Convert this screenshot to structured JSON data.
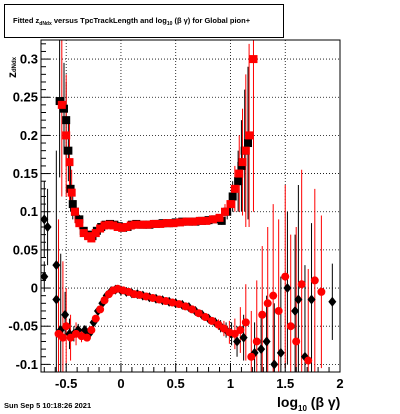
{
  "title": {
    "fitted": "Fitted",
    "z": "z",
    "z_sub": "dNdx",
    "mid": "versus TpcTrackLength and log",
    "log_sub": "10",
    "tail": "(β γ) for Global pion+"
  },
  "timestamp": "Sun Sep  5 10:18:26 2021",
  "axis_titles": {
    "x_main": "log",
    "x_sub": "10",
    "x_tail": "(β γ)",
    "y_main": "z",
    "y_sub": "dNdx"
  },
  "chart_data": {
    "type": "scatter",
    "title": "Fitted z_dNdx versus TpcTrackLength and log10(β γ) for Global pion+",
    "xlabel": "log10(β γ)",
    "ylabel": "z_dNdx",
    "xlim": [
      -0.73,
      2.0
    ],
    "ylim": [
      -0.11,
      0.325
    ],
    "grid": true,
    "x_ticks": [
      "-0.5",
      "0",
      "0.5",
      "1",
      "1.5",
      "2"
    ],
    "x_tick_values": [
      -0.5,
      0,
      0.5,
      1,
      1.5,
      2
    ],
    "y_ticks": [
      "-0.1",
      "-0.05",
      "0",
      "0.05",
      "0.1",
      "0.15",
      "0.2",
      "0.25",
      "0.3"
    ],
    "y_tick_values": [
      -0.1,
      -0.05,
      0,
      0.05,
      0.1,
      0.15,
      0.2,
      0.25,
      0.3
    ],
    "series": [
      {
        "color": "#000000",
        "marker": "square",
        "points": [
          [
            -0.56,
            0.245,
            0.1
          ],
          [
            -0.52,
            0.235,
            0.06
          ],
          [
            -0.5,
            0.22,
            0.05
          ],
          [
            -0.48,
            0.18,
            0.04
          ],
          [
            -0.46,
            0.13,
            0.03
          ],
          [
            -0.44,
            0.11,
            0.02
          ],
          [
            -0.42,
            0.1,
            0.01
          ],
          [
            -0.38,
            0.09,
            0.006
          ],
          [
            -0.34,
            0.075,
            0.004
          ],
          [
            -0.3,
            0.07,
            0.003
          ],
          [
            -0.26,
            0.068,
            0.003
          ],
          [
            -0.22,
            0.075,
            0.002
          ],
          [
            -0.18,
            0.08,
            0.002
          ],
          [
            -0.14,
            0.083,
            0.002
          ],
          [
            -0.1,
            0.084,
            0.001
          ],
          [
            -0.06,
            0.083,
            0.001
          ],
          [
            -0.02,
            0.081,
            0.001
          ],
          [
            0.02,
            0.079,
            0.001
          ],
          [
            0.06,
            0.08,
            0.001
          ],
          [
            0.1,
            0.083,
            0.001
          ],
          [
            0.14,
            0.084,
            0.001
          ],
          [
            0.2,
            0.083,
            0.001
          ],
          [
            0.26,
            0.083,
            0.001
          ],
          [
            0.32,
            0.084,
            0.001
          ],
          [
            0.38,
            0.085,
            0.001
          ],
          [
            0.44,
            0.085,
            0.001
          ],
          [
            0.5,
            0.086,
            0.001
          ],
          [
            0.56,
            0.087,
            0.001
          ],
          [
            0.62,
            0.087,
            0.001
          ],
          [
            0.68,
            0.087,
            0.001
          ],
          [
            0.74,
            0.088,
            0.001
          ],
          [
            0.8,
            0.089,
            0.002
          ],
          [
            0.86,
            0.09,
            0.003
          ],
          [
            0.92,
            0.088,
            0.005
          ],
          [
            0.97,
            0.1,
            0.01
          ],
          [
            1.02,
            0.12,
            0.02
          ],
          [
            1.07,
            0.14,
            0.04
          ],
          [
            1.1,
            0.16,
            0.06
          ],
          [
            1.13,
            0.18,
            0.08
          ],
          [
            1.16,
            0.19,
            0.1
          ]
        ]
      },
      {
        "color": "#ff0000",
        "marker": "square",
        "points": [
          [
            -0.54,
            0.24,
            0.12
          ],
          [
            -0.5,
            0.2,
            0.08
          ],
          [
            -0.47,
            0.165,
            0.05
          ],
          [
            -0.45,
            0.125,
            0.03
          ],
          [
            -0.42,
            0.1,
            0.015
          ],
          [
            -0.38,
            0.085,
            0.008
          ],
          [
            -0.34,
            0.072,
            0.005
          ],
          [
            -0.3,
            0.068,
            0.004
          ],
          [
            -0.27,
            0.065,
            0.003
          ],
          [
            -0.23,
            0.072,
            0.003
          ],
          [
            -0.19,
            0.078,
            0.002
          ],
          [
            -0.15,
            0.082,
            0.002
          ],
          [
            -0.11,
            0.083,
            0.002
          ],
          [
            -0.07,
            0.082,
            0.001
          ],
          [
            -0.03,
            0.08,
            0.001
          ],
          [
            0.01,
            0.079,
            0.001
          ],
          [
            0.05,
            0.08,
            0.001
          ],
          [
            0.09,
            0.082,
            0.001
          ],
          [
            0.13,
            0.083,
            0.001
          ],
          [
            0.18,
            0.083,
            0.001
          ],
          [
            0.24,
            0.083,
            0.001
          ],
          [
            0.3,
            0.084,
            0.001
          ],
          [
            0.36,
            0.084,
            0.001
          ],
          [
            0.42,
            0.085,
            0.001
          ],
          [
            0.48,
            0.085,
            0.001
          ],
          [
            0.54,
            0.086,
            0.001
          ],
          [
            0.6,
            0.087,
            0.001
          ],
          [
            0.66,
            0.087,
            0.001
          ],
          [
            0.72,
            0.088,
            0.001
          ],
          [
            0.78,
            0.088,
            0.002
          ],
          [
            0.84,
            0.09,
            0.003
          ],
          [
            0.9,
            0.092,
            0.005
          ],
          [
            0.95,
            0.1,
            0.01
          ],
          [
            1.0,
            0.11,
            0.015
          ],
          [
            1.04,
            0.13,
            0.03
          ],
          [
            1.08,
            0.15,
            0.05
          ],
          [
            1.11,
            0.165,
            0.07
          ],
          [
            1.14,
            0.18,
            0.1
          ],
          [
            1.17,
            0.2,
            0.12
          ],
          [
            1.21,
            0.3,
            0.2
          ]
        ]
      },
      {
        "color": "#000000",
        "marker": "diamond",
        "points": [
          [
            -0.7,
            0.09,
            0.05
          ],
          [
            -0.67,
            0.08,
            0.05
          ],
          [
            -0.7,
            0.015,
            0.02
          ],
          [
            -0.59,
            0.03,
            0.15
          ],
          [
            -0.59,
            -0.015,
            0.04
          ],
          [
            -0.55,
            -0.055,
            0.1
          ],
          [
            -0.51,
            -0.035,
            0.03
          ],
          [
            -0.47,
            -0.06,
            0.02
          ],
          [
            -0.43,
            -0.06,
            0.01
          ],
          [
            -0.39,
            -0.055,
            0.008
          ],
          [
            -0.33,
            -0.055,
            0.006
          ],
          [
            -0.29,
            -0.06,
            0.005
          ],
          [
            -0.25,
            -0.045,
            0.004
          ],
          [
            -0.21,
            -0.03,
            0.003
          ],
          [
            -0.17,
            -0.02,
            0.003
          ],
          [
            -0.13,
            -0.01,
            0.002
          ],
          [
            -0.09,
            -0.004,
            0.002
          ],
          [
            -0.05,
            -0.002,
            0.001
          ],
          [
            0.0,
            -0.003,
            0.001
          ],
          [
            0.05,
            -0.005,
            0.001
          ],
          [
            0.1,
            -0.007,
            0.001
          ],
          [
            0.15,
            -0.008,
            0.001
          ],
          [
            0.2,
            -0.01,
            0.001
          ],
          [
            0.26,
            -0.012,
            0.001
          ],
          [
            0.32,
            -0.014,
            0.001
          ],
          [
            0.38,
            -0.016,
            0.001
          ],
          [
            0.44,
            -0.018,
            0.001
          ],
          [
            0.5,
            -0.02,
            0.001
          ],
          [
            0.56,
            -0.022,
            0.001
          ],
          [
            0.62,
            -0.025,
            0.002
          ],
          [
            0.68,
            -0.03,
            0.002
          ],
          [
            0.74,
            -0.035,
            0.003
          ],
          [
            0.8,
            -0.04,
            0.004
          ],
          [
            0.86,
            -0.045,
            0.006
          ],
          [
            0.91,
            -0.05,
            0.008
          ],
          [
            0.96,
            -0.055,
            0.01
          ],
          [
            1.01,
            -0.06,
            0.015
          ],
          [
            1.06,
            -0.07,
            0.02
          ],
          [
            1.12,
            -0.065,
            0.03
          ],
          [
            1.22,
            -0.085,
            0.04
          ],
          [
            1.28,
            -0.08,
            0.05
          ],
          [
            1.33,
            -0.07,
            0.06
          ],
          [
            1.4,
            -0.1,
            0.08
          ],
          [
            1.46,
            -0.085,
            0.1
          ],
          [
            1.52,
            0.0,
            0.1
          ],
          [
            1.59,
            -0.03,
            0.1
          ],
          [
            1.62,
            -0.015,
            0.15
          ],
          [
            1.68,
            -0.09,
            0.12
          ],
          [
            1.74,
            -0.015,
            0.1
          ],
          [
            1.93,
            -0.018,
            0.05
          ]
        ]
      },
      {
        "color": "#ff0000",
        "marker": "circle",
        "points": [
          [
            -0.57,
            -0.06,
            0.15
          ],
          [
            -0.53,
            -0.065,
            0.1
          ],
          [
            -0.5,
            -0.05,
            0.05
          ],
          [
            -0.46,
            -0.065,
            0.03
          ],
          [
            -0.41,
            -0.06,
            0.015
          ],
          [
            -0.36,
            -0.063,
            0.008
          ],
          [
            -0.31,
            -0.065,
            0.005
          ],
          [
            -0.27,
            -0.055,
            0.004
          ],
          [
            -0.23,
            -0.04,
            0.003
          ],
          [
            -0.19,
            -0.028,
            0.003
          ],
          [
            -0.15,
            -0.016,
            0.002
          ],
          [
            -0.11,
            -0.008,
            0.002
          ],
          [
            -0.07,
            -0.003,
            0.001
          ],
          [
            -0.03,
            -0.001,
            0.001
          ],
          [
            0.02,
            -0.003,
            0.001
          ],
          [
            0.07,
            -0.005,
            0.001
          ],
          [
            0.12,
            -0.008,
            0.001
          ],
          [
            0.17,
            -0.009,
            0.001
          ],
          [
            0.23,
            -0.011,
            0.001
          ],
          [
            0.29,
            -0.013,
            0.001
          ],
          [
            0.35,
            -0.015,
            0.001
          ],
          [
            0.41,
            -0.017,
            0.001
          ],
          [
            0.47,
            -0.019,
            0.001
          ],
          [
            0.53,
            -0.021,
            0.001
          ],
          [
            0.59,
            -0.024,
            0.002
          ],
          [
            0.65,
            -0.028,
            0.002
          ],
          [
            0.71,
            -0.033,
            0.003
          ],
          [
            0.77,
            -0.038,
            0.004
          ],
          [
            0.83,
            -0.043,
            0.005
          ],
          [
            0.89,
            -0.048,
            0.007
          ],
          [
            0.94,
            -0.053,
            0.01
          ],
          [
            0.99,
            -0.058,
            0.015
          ],
          [
            1.04,
            -0.06,
            0.02
          ],
          [
            1.09,
            -0.055,
            0.03
          ],
          [
            1.14,
            -0.045,
            0.05
          ],
          [
            1.19,
            -0.09,
            0.06
          ],
          [
            1.24,
            -0.07,
            0.08
          ],
          [
            1.29,
            -0.035,
            0.09
          ],
          [
            1.34,
            -0.02,
            0.1
          ],
          [
            1.39,
            -0.01,
            0.12
          ],
          [
            1.44,
            -0.03,
            0.12
          ],
          [
            1.5,
            0.015,
            0.12
          ],
          [
            1.55,
            -0.05,
            0.12
          ],
          [
            1.6,
            -0.07,
            0.15
          ],
          [
            1.65,
            0.005,
            0.15
          ],
          [
            1.71,
            -0.095,
            0.12
          ],
          [
            1.77,
            0.01,
            0.12
          ],
          [
            1.83,
            -0.005,
            0.1
          ]
        ]
      }
    ]
  }
}
